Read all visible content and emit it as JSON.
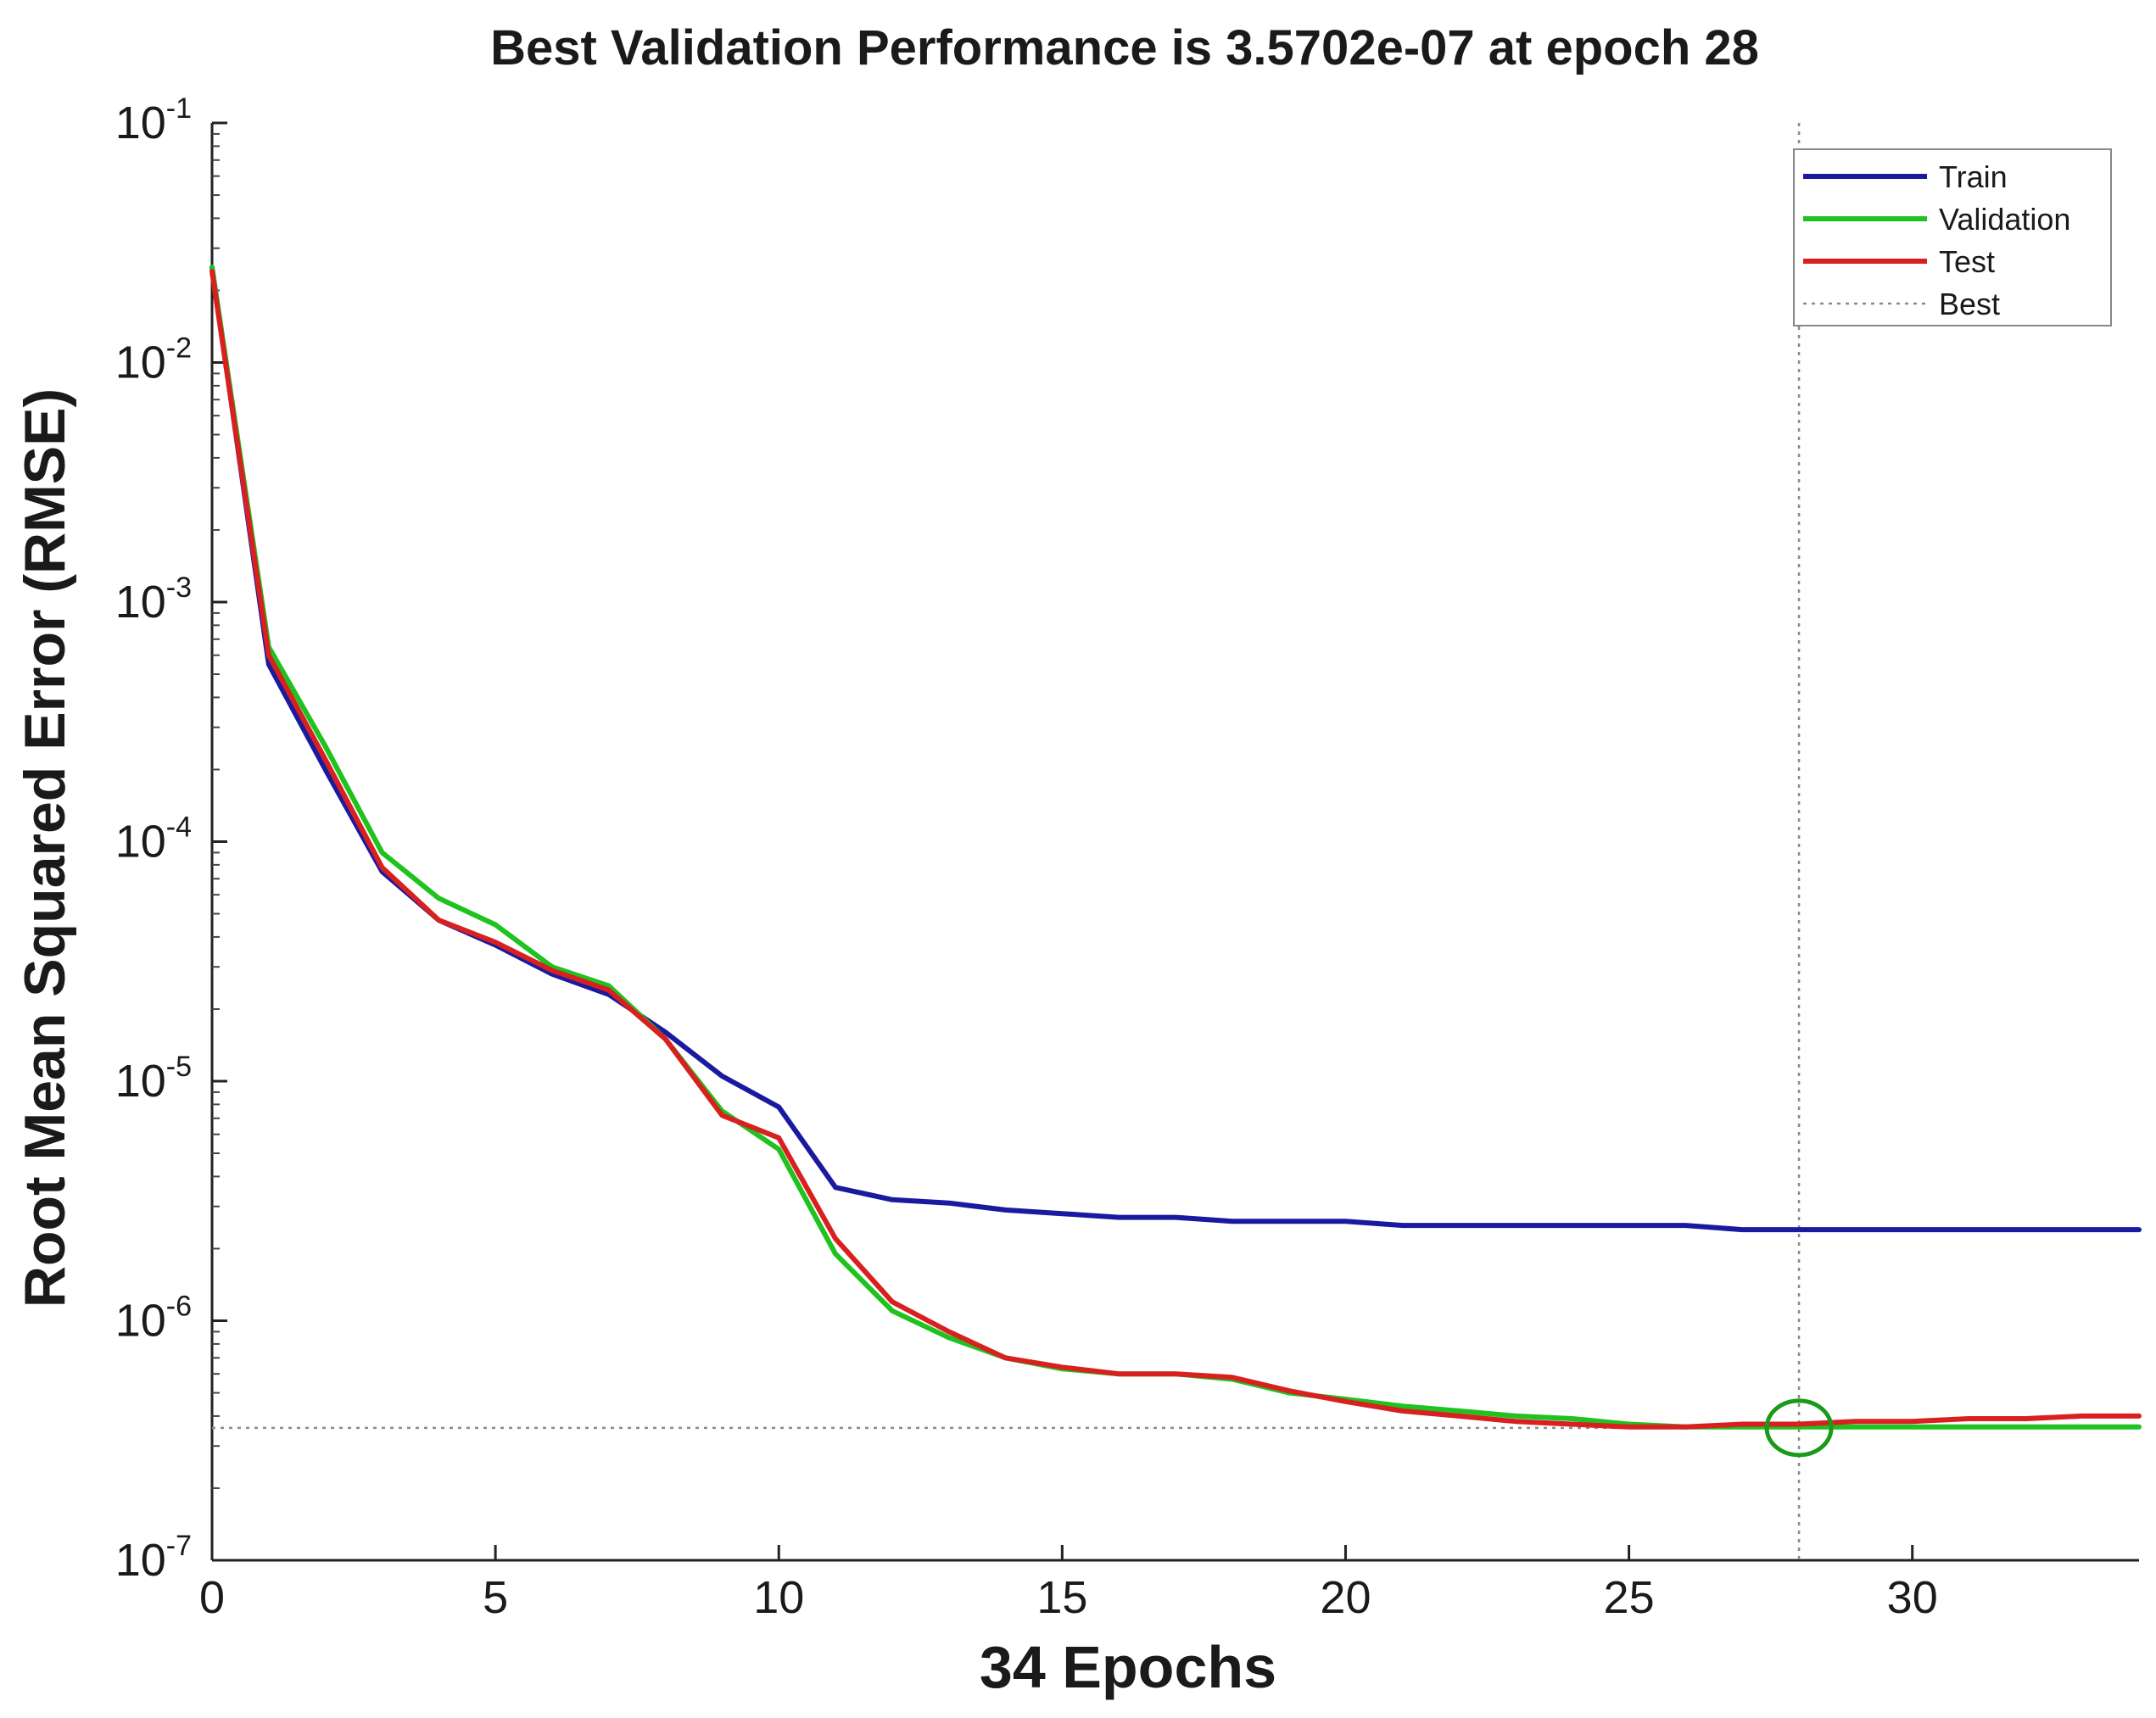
{
  "chart_data": {
    "type": "line",
    "title": "Best Validation Performance is 3.5702e-07 at epoch 28",
    "xlabel": "34 Epochs",
    "ylabel": "Root Mean Squared Error (RMSE)",
    "xlim": [
      0,
      34
    ],
    "ylim": [
      1e-07,
      0.1
    ],
    "yscale": "log",
    "xticks": [
      {
        "value": 0,
        "label": "0"
      },
      {
        "value": 5,
        "label": "5"
      },
      {
        "value": 10,
        "label": "10"
      },
      {
        "value": 15,
        "label": "15"
      },
      {
        "value": 20,
        "label": "20"
      },
      {
        "value": 25,
        "label": "25"
      },
      {
        "value": 30,
        "label": "30"
      }
    ],
    "yticks": [
      {
        "value": 0.1,
        "base": "10",
        "exp": "-1"
      },
      {
        "value": 0.01,
        "base": "10",
        "exp": "-2"
      },
      {
        "value": 0.001,
        "base": "10",
        "exp": "-3"
      },
      {
        "value": 0.0001,
        "base": "10",
        "exp": "-4"
      },
      {
        "value": 1e-05,
        "base": "10",
        "exp": "-5"
      },
      {
        "value": 1e-06,
        "base": "10",
        "exp": "-6"
      },
      {
        "value": 1e-07,
        "base": "10",
        "exp": "-7"
      }
    ],
    "x": [
      0,
      1,
      2,
      3,
      4,
      5,
      6,
      7,
      8,
      9,
      10,
      11,
      12,
      13,
      14,
      15,
      16,
      17,
      18,
      19,
      20,
      21,
      22,
      23,
      24,
      25,
      26,
      27,
      28,
      29,
      30,
      31,
      32,
      33,
      34
    ],
    "series": [
      {
        "name": "Train",
        "color": "#1a1aa0",
        "values": [
          0.025,
          0.00055,
          0.0002,
          7.5e-05,
          4.7e-05,
          3.7e-05,
          2.8e-05,
          2.3e-05,
          1.6e-05,
          1.05e-05,
          7.8e-06,
          3.6e-06,
          3.2e-06,
          3.1e-06,
          2.9e-06,
          2.8e-06,
          2.7e-06,
          2.7e-06,
          2.6e-06,
          2.6e-06,
          2.6e-06,
          2.5e-06,
          2.5e-06,
          2.5e-06,
          2.5e-06,
          2.5e-06,
          2.5e-06,
          2.4e-06,
          2.4e-06,
          2.4e-06,
          2.4e-06,
          2.4e-06,
          2.4e-06,
          2.4e-06,
          2.4e-06
        ]
      },
      {
        "name": "Validation",
        "color": "#1fc21f",
        "values": [
          0.025,
          0.00065,
          0.00025,
          9e-05,
          5.8e-05,
          4.5e-05,
          3e-05,
          2.5e-05,
          1.5e-05,
          7.5e-06,
          5.2e-06,
          1.9e-06,
          1.1e-06,
          8.5e-07,
          7e-07,
          6.3e-07,
          6e-07,
          6e-07,
          5.7e-07,
          5e-07,
          4.7e-07,
          4.4e-07,
          4.2e-07,
          4e-07,
          3.9e-07,
          3.7e-07,
          3.6e-07,
          3.6e-07,
          3.6e-07,
          3.6e-07,
          3.6e-07,
          3.6e-07,
          3.6e-07,
          3.6e-07,
          3.6e-07
        ]
      },
      {
        "name": "Test",
        "color": "#d92020",
        "values": [
          0.024,
          0.0006,
          0.00022,
          7.8e-05,
          4.7e-05,
          3.8e-05,
          2.9e-05,
          2.4e-05,
          1.5e-05,
          7.2e-06,
          5.8e-06,
          2.2e-06,
          1.2e-06,
          9e-07,
          7e-07,
          6.4e-07,
          6e-07,
          6e-07,
          5.8e-07,
          5.1e-07,
          4.6e-07,
          4.2e-07,
          4e-07,
          3.8e-07,
          3.7e-07,
          3.6e-07,
          3.6e-07,
          3.7e-07,
          3.7e-07,
          3.8e-07,
          3.8e-07,
          3.9e-07,
          3.9e-07,
          4e-07,
          4e-07
        ]
      }
    ],
    "best": {
      "label": "Best",
      "epoch": 28,
      "value": 3.5702e-07,
      "marker_color": "#1a9a1a"
    },
    "legend_position": "top-right",
    "grid": false
  }
}
